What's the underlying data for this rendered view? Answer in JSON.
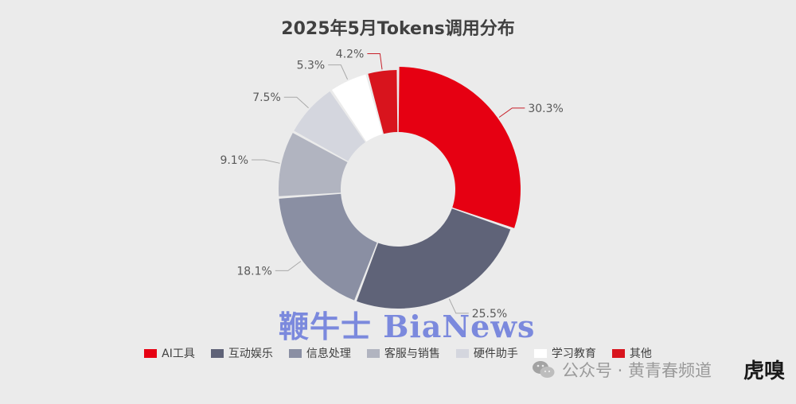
{
  "chart_data": {
    "type": "pie",
    "title": "2025年5月Tokens调用分布",
    "categories": [
      "AI工具",
      "互动娱乐",
      "信息处理",
      "客服与销售",
      "硬件助手",
      "学习教育",
      "其他"
    ],
    "values": [
      30.3,
      25.5,
      18.1,
      9.1,
      7.5,
      5.3,
      4.2
    ],
    "value_labels": [
      "30.3%",
      "25.5%",
      "18.1%",
      "9.1%",
      "7.5%",
      "5.3%",
      "4.2%"
    ],
    "colors": [
      "#e60012",
      "#5f6378",
      "#8a8fa3",
      "#b1b4c0",
      "#d4d6de",
      "#ffffff",
      "#d8141d"
    ],
    "legend_position": "bottom",
    "donut": true
  },
  "watermarks": {
    "bianews": "鞭牛士 BiaNews",
    "wechat": "公众号 · 黄青春频道",
    "corner": "虎嗅"
  },
  "icons": {
    "wechat": "wechat-icon"
  }
}
